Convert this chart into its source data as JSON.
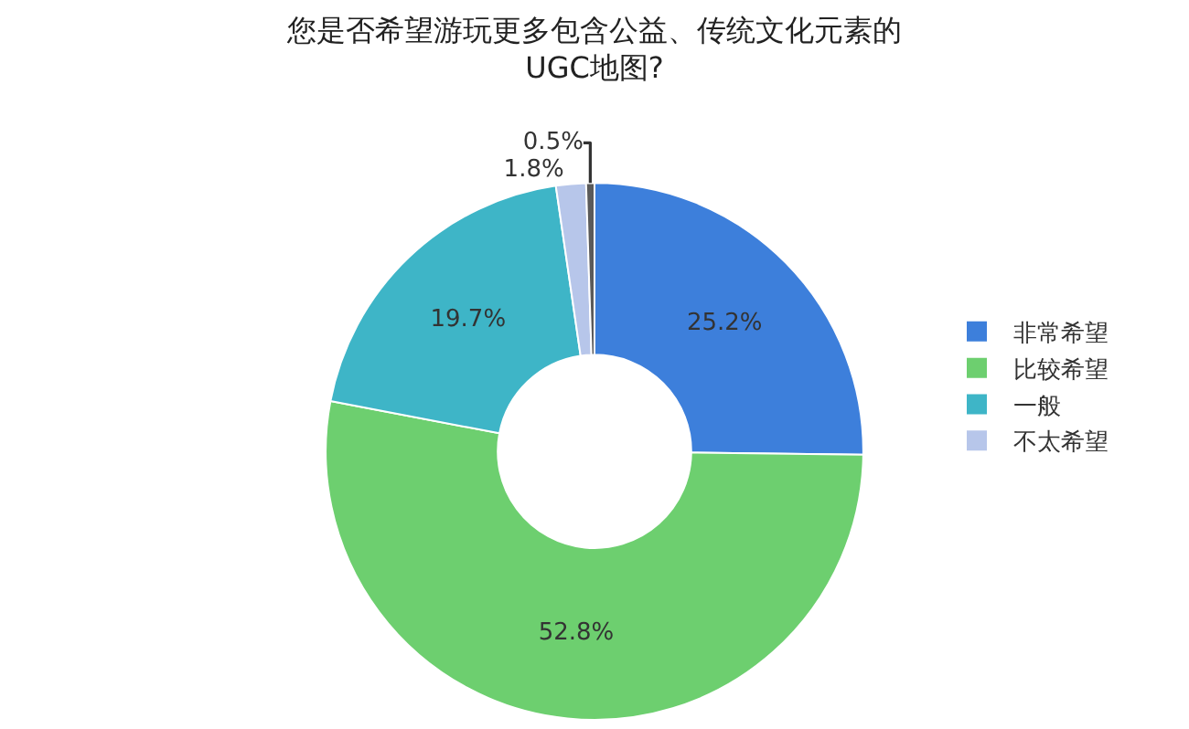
{
  "chart_data": {
    "type": "donut",
    "title": "您是否希望游玩更多包含公益、传统文化元素的UGC地图?",
    "categories": [
      "非常希望",
      "比较希望",
      "一般",
      "不太希望",
      null
    ],
    "values": [
      25.2,
      52.8,
      19.7,
      1.8,
      0.5
    ],
    "value_labels": [
      "25.2%",
      "52.8%",
      "19.7%",
      "1.8%",
      "0.5%"
    ],
    "colors": [
      "#3d7fdb",
      "#6dcf6f",
      "#3eb5c7",
      "#b7c6ea",
      "#5a5a5a"
    ],
    "legend": "right"
  }
}
